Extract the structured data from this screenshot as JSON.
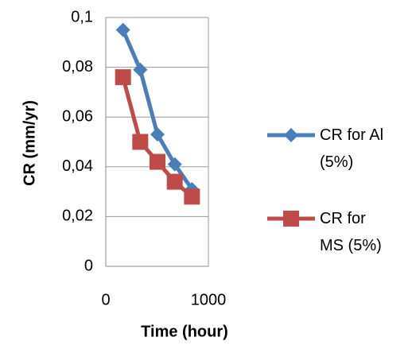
{
  "chart_data": {
    "type": "line",
    "x_label": "Time (hour)",
    "y_label": "CR (mm/yr)",
    "xlim": [
      0,
      1000
    ],
    "xticks": [
      0,
      1000
    ],
    "ylim": [
      0,
      0.1
    ],
    "yticks": [
      0,
      {
        "value": 0.02,
        "label": "0,02"
      },
      {
        "value": 0.04,
        "label": "0,04"
      },
      {
        "value": 0.06,
        "label": "0,06"
      },
      {
        "value": 0.08,
        "label": "0,08"
      },
      {
        "value": 0.1,
        "label": "0,1"
      }
    ],
    "grid": true,
    "legend": "right",
    "series": [
      {
        "name": "CR for Al (5%)",
        "color": "#4a7ebb",
        "marker": "diamond",
        "x": [
          168,
          336,
          504,
          672,
          840
        ],
        "values": [
          0.095,
          0.079,
          0.053,
          0.041,
          0.031
        ]
      },
      {
        "name": "CR for MS (5%)",
        "color": "#be4b48",
        "marker": "square",
        "x": [
          168,
          336,
          504,
          672,
          840
        ],
        "values": [
          0.076,
          0.05,
          0.042,
          0.034,
          0.028
        ]
      }
    ]
  }
}
